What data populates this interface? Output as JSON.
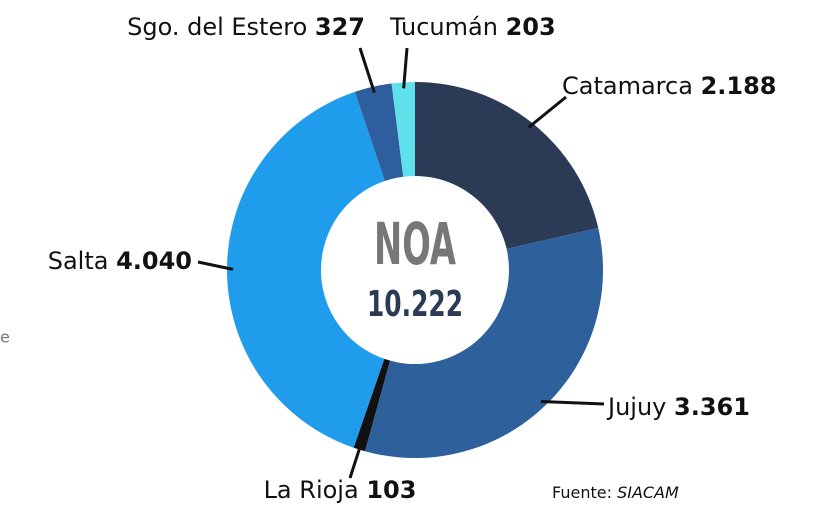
{
  "chart_data": {
    "type": "donut",
    "categories": [
      "Catamarca",
      "Jujuy",
      "La Rioja",
      "Salta",
      "Sgo. del Estero",
      "Tucumán"
    ],
    "values": [
      2188,
      3361,
      103,
      4040,
      327,
      203
    ],
    "value_labels": [
      "2.188",
      "3.361",
      "103",
      "4.040",
      "327",
      "203"
    ],
    "colors": [
      "#2b3a55",
      "#2e609c",
      "#111111",
      "#1f9cec",
      "#2f5e9e",
      "#5fe1ec"
    ],
    "center_title": "NOA",
    "center_value": "10.222",
    "source_label": "Fuente:",
    "source": "SIACAM",
    "fragment": "e"
  }
}
